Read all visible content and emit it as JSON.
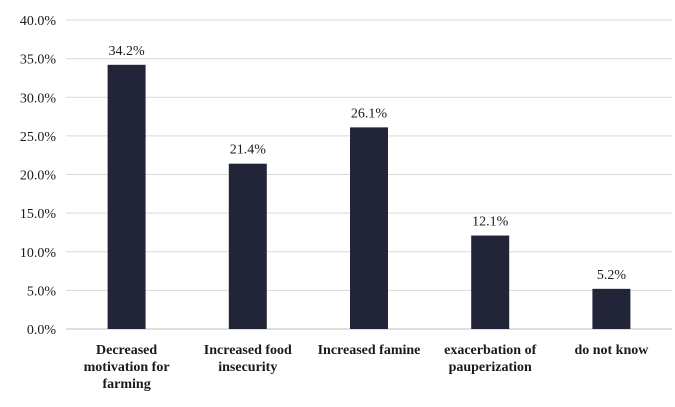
{
  "chart_data": {
    "type": "bar",
    "title": "",
    "xlabel": "",
    "ylabel": "",
    "categories": [
      [
        "Decreased",
        "motivation for",
        "farming"
      ],
      [
        "Increased food",
        "insecurity"
      ],
      [
        "Increased famine"
      ],
      [
        "exacerbation of",
        "pauperization"
      ],
      [
        "do not know"
      ]
    ],
    "values": [
      34.2,
      21.4,
      26.1,
      12.1,
      5.2
    ],
    "data_labels": [
      "34.2%",
      "21.4%",
      "26.1%",
      "12.1%",
      "5.2%"
    ],
    "ylim": [
      0,
      40
    ],
    "yticks": [
      0,
      5,
      10,
      15,
      20,
      25,
      30,
      35,
      40
    ],
    "ytick_labels": [
      "0.0%",
      "5.0%",
      "10.0%",
      "15.0%",
      "20.0%",
      "25.0%",
      "30.0%",
      "35.0%",
      "40.0%"
    ],
    "grid": true,
    "legend": "none",
    "bar_color": "#222438"
  }
}
